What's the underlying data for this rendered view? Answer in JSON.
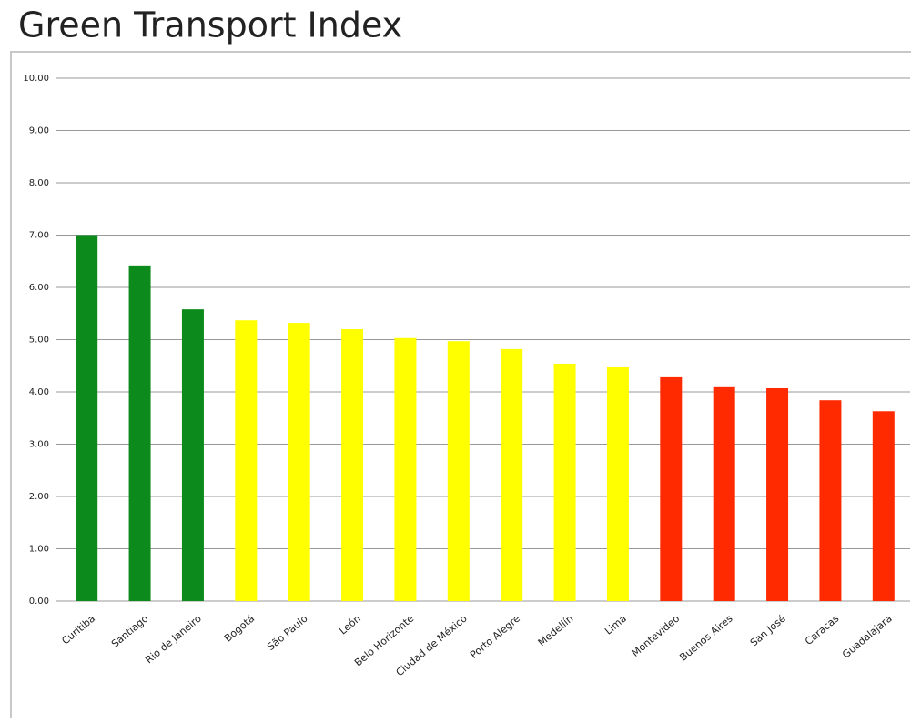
{
  "chart_data": {
    "type": "bar",
    "title": "Green Transport Index",
    "categories": [
      "Curitiba",
      "Santiago",
      "Rio de Janeiro",
      "Bogotá",
      "São Paulo",
      "León",
      "Belo Horizonte",
      "Ciudad de México",
      "Porto Alegre",
      "Medellín",
      "Lima",
      "Montevideo",
      "Buenos Aires",
      "San José",
      "Caracas",
      "Guadalajara"
    ],
    "values": [
      7.0,
      6.42,
      5.58,
      5.37,
      5.32,
      5.2,
      5.03,
      4.97,
      4.82,
      4.54,
      4.47,
      4.28,
      4.09,
      4.07,
      3.84,
      3.63
    ],
    "colors": [
      "#0c8a1c",
      "#0c8a1c",
      "#0c8a1c",
      "#ffff00",
      "#ffff00",
      "#ffff00",
      "#ffff00",
      "#ffff00",
      "#ffff00",
      "#ffff00",
      "#ffff00",
      "#ff2a00",
      "#ff2a00",
      "#ff2a00",
      "#ff2a00",
      "#ff2a00"
    ],
    "ylim": [
      0,
      10
    ],
    "yticks": [
      {
        "value": 0,
        "label": "0.00"
      },
      {
        "value": 1,
        "label": "1.00"
      },
      {
        "value": 2,
        "label": "2.00"
      },
      {
        "value": 3,
        "label": "3.00"
      },
      {
        "value": 4,
        "label": "4.00"
      },
      {
        "value": 5,
        "label": "5.00"
      },
      {
        "value": 6,
        "label": "6.00"
      },
      {
        "value": 7,
        "label": "7.00"
      },
      {
        "value": 8,
        "label": "8.00"
      },
      {
        "value": 9,
        "label": "9.00"
      },
      {
        "value": 10,
        "label": "10.00"
      }
    ],
    "grid": true
  }
}
